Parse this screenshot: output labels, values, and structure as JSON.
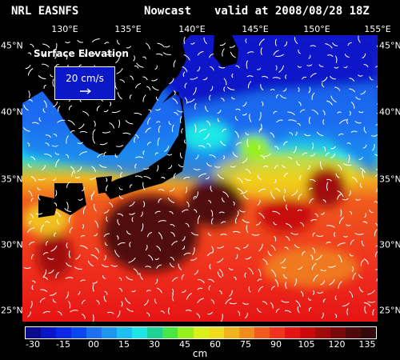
{
  "title": {
    "model": "NRL EASNFS",
    "mode": "Nowcast",
    "valid": "valid at 2008/08/28 18Z"
  },
  "lon_labels": [
    "130°E",
    "135°E",
    "140°E",
    "145°E",
    "150°E",
    "155°E"
  ],
  "lat_labels": [
    "45°N",
    "40°N",
    "35°N",
    "30°N",
    "25°N"
  ],
  "legend": {
    "field": "Surface Elevation",
    "reference_vector": "20 cm/s"
  },
  "colorbar": {
    "ticks": [
      "-30",
      "-15",
      "00",
      "15",
      "30",
      "45",
      "60",
      "75",
      "90",
      "105",
      "120",
      "135"
    ],
    "unit": "cm",
    "colors": [
      "#0a0a8c",
      "#0a14c8",
      "#0a28e6",
      "#0a46f0",
      "#1e6ef0",
      "#1e96f0",
      "#1ebef0",
      "#1ee6e6",
      "#1ed296",
      "#46e646",
      "#96f01e",
      "#dcf01e",
      "#f0dc1e",
      "#f0b41e",
      "#f08c1e",
      "#f05a1e",
      "#f0321e",
      "#e61414",
      "#c80a0a",
      "#a00a0a",
      "#780a0a",
      "#500a0a",
      "#320a0a"
    ]
  }
}
